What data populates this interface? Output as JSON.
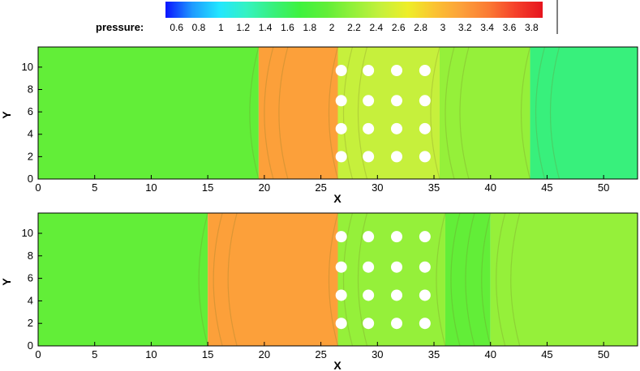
{
  "colors": {
    "scale": [
      "#0a14ff",
      "#1e9bff",
      "#23e6ff",
      "#34f2c2",
      "#38f07c",
      "#3ef23e",
      "#62ee38",
      "#95f03a",
      "#c6f03c",
      "#eeee28",
      "#fbc232",
      "#fca03a",
      "#fb7a34",
      "#f5402a",
      "#e6141e"
    ],
    "fluid": "#3ef23e",
    "cold": "#1fa5f0",
    "obstacle": "#ffffff"
  },
  "colorbar": {
    "label": "pressure:",
    "min": 0.5,
    "max": 3.9,
    "ticks": [
      "0.6",
      "0.8",
      "1",
      "1.2",
      "1.4",
      "1.6",
      "1.8",
      "2",
      "2.2",
      "2.4",
      "2.6",
      "2.8",
      "3",
      "3.2",
      "3.4",
      "3.6",
      "3.8"
    ]
  },
  "chart_data": [
    {
      "type": "heatmap",
      "title": "",
      "xlabel": "X",
      "ylabel": "Y",
      "xlim": [
        0,
        53
      ],
      "ylim": [
        0,
        11.8
      ],
      "xticks": [
        "0",
        "5",
        "10",
        "15",
        "20",
        "25",
        "30",
        "35",
        "40",
        "45",
        "50"
      ],
      "yticks": [
        "0",
        "2",
        "4",
        "6",
        "8",
        "10"
      ],
      "field": "pressure",
      "regions": [
        {
          "x0": 0,
          "x1": 19.5,
          "pressure": 2.05
        },
        {
          "x0": 19.5,
          "x1": 26.5,
          "pressure": 3.1
        },
        {
          "x0": 26.5,
          "x1": 35.5,
          "pressure": 2.4
        },
        {
          "x0": 35.5,
          "x1": 43.5,
          "pressure": 2.15
        },
        {
          "x0": 43.5,
          "x1": 53,
          "pressure": 1.4
        }
      ],
      "cylinder_rows_y": [
        2,
        4.5,
        7,
        9.7
      ],
      "cylinder_cols_x": [
        26.8,
        29.2,
        31.7,
        34.2
      ],
      "cylinder_radius": 0.45
    },
    {
      "type": "heatmap",
      "title": "",
      "xlabel": "X",
      "ylabel": "Y",
      "xlim": [
        0,
        53
      ],
      "ylim": [
        0,
        11.8
      ],
      "xticks": [
        "0",
        "5",
        "10",
        "15",
        "20",
        "25",
        "30",
        "35",
        "40",
        "45",
        "50"
      ],
      "yticks": [
        "0",
        "2",
        "4",
        "6",
        "8",
        "10"
      ],
      "field": "pressure",
      "regions": [
        {
          "x0": 0,
          "x1": 15,
          "pressure": 2.05
        },
        {
          "x0": 15,
          "x1": 26.5,
          "pressure": 3.15
        },
        {
          "x0": 26.5,
          "x1": 36,
          "pressure": 2.3
        },
        {
          "x0": 36,
          "x1": 40,
          "pressure": 1.9
        },
        {
          "x0": 40,
          "x1": 53,
          "pressure": 2.15
        }
      ],
      "cylinder_rows_y": [
        2,
        4.5,
        7,
        9.7
      ],
      "cylinder_cols_x": [
        26.8,
        29.2,
        31.7,
        34.2
      ],
      "cylinder_radius": 0.45
    }
  ]
}
